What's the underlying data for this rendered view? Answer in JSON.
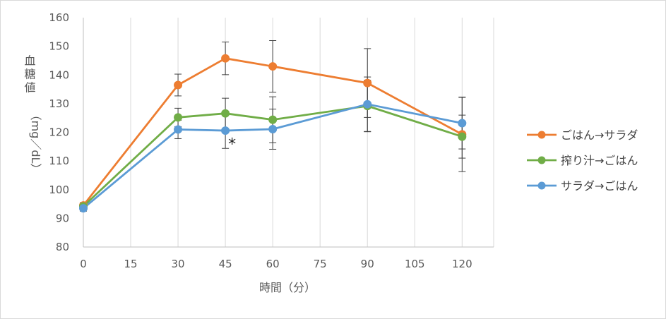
{
  "chart_data": {
    "type": "line",
    "title": "",
    "xlabel": "時間（分）",
    "ylabel_main": "血糖値",
    "ylabel_unit": "（mg／dL）",
    "x_ticks": [
      "0",
      "15",
      "30",
      "45",
      "60",
      "75",
      "90",
      "105",
      "120"
    ],
    "y_ticks": [
      "80",
      "90",
      "100",
      "110",
      "120",
      "130",
      "140",
      "150",
      "160"
    ],
    "xlim": [
      0,
      130
    ],
    "ylim": [
      80,
      160
    ],
    "grid": "vertical",
    "legend_position": "right",
    "x": [
      0,
      30,
      45,
      60,
      90,
      120
    ],
    "series": [
      {
        "name": "ごはん→サラダ",
        "color": "#ed7d31",
        "values": [
          94.5,
          136.5,
          145.8,
          143.0,
          137.2,
          119.3
        ],
        "error": [
          1.0,
          3.8,
          5.7,
          9.0,
          12.0,
          13.0
        ]
      },
      {
        "name": "搾り汁→ごはん",
        "color": "#70ad47",
        "values": [
          94.2,
          125.2,
          126.6,
          124.4,
          129.2,
          118.5
        ],
        "error": [
          1.0,
          3.2,
          5.3,
          8.0,
          9.0,
          7.5
        ]
      },
      {
        "name": "サラダ→ごはん",
        "color": "#5b9bd5",
        "values": [
          93.5,
          121.0,
          120.6,
          121.1,
          129.8,
          123.2
        ],
        "error": [
          1.0,
          3.2,
          6.2,
          7.0,
          9.5,
          9.0
        ]
      }
    ],
    "annotations": [
      {
        "text": "*",
        "x": 45,
        "y": 117
      }
    ]
  }
}
